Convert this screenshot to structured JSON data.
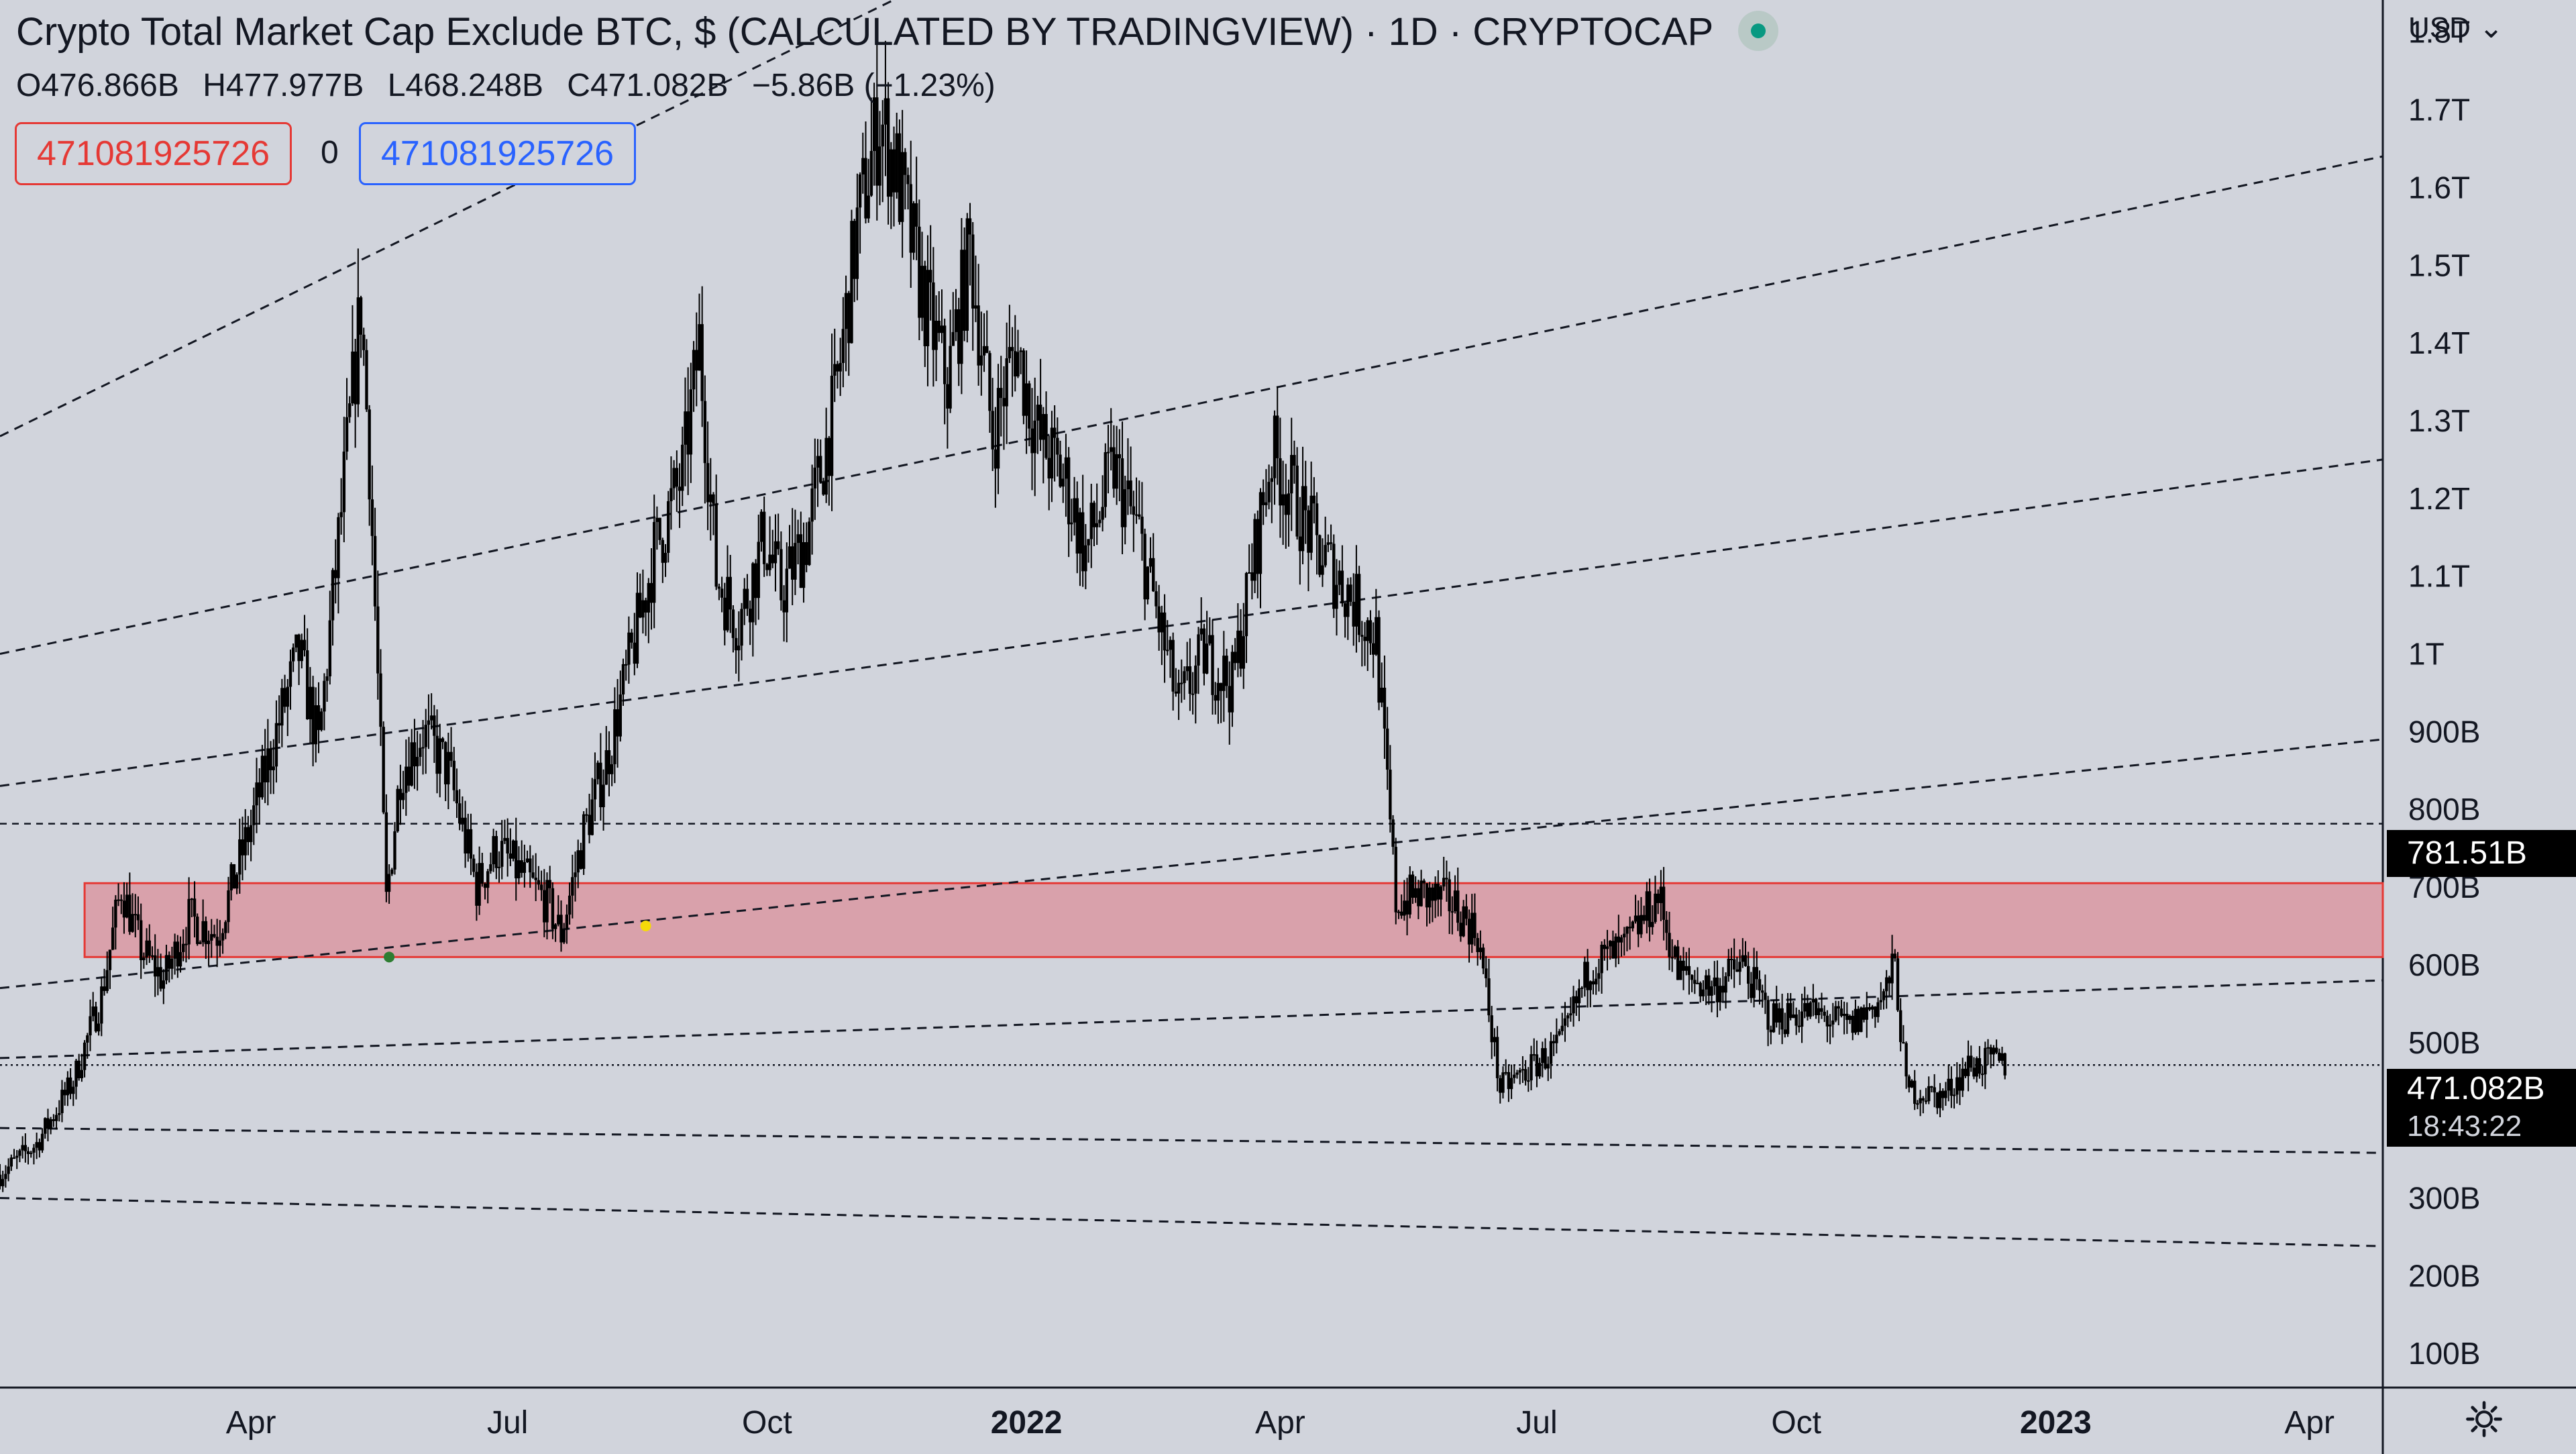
{
  "header": {
    "title": "Crypto Total Market Cap Exclude BTC, $ (CALCULATED BY TRADINGVIEW) · 1D · CRYPTOCAP",
    "open": "O476.866B",
    "high": "H477.977B",
    "low": "L468.248B",
    "close": "C471.082B",
    "change": "−5.86B (−1.23%)",
    "indicator_left": "471081925726",
    "indicator_mid": "0",
    "indicator_right": "471081925726",
    "status_icon": "live-status-dot",
    "currency": "USD"
  },
  "price_labels": {
    "level": "781.51B",
    "last": "471.082B",
    "countdown": "18:43:22"
  },
  "chart_data": {
    "type": "candlestick",
    "title": "Crypto Total Market Cap Exclude BTC, $ (CALCULATED BY TRADINGVIEW) · 1D · CRYPTOCAP",
    "x_range": [
      "2021-01-02",
      "2023-04-27"
    ],
    "y_unit": "USD",
    "y_ticks": [
      "100B",
      "200B",
      "300B",
      "400B",
      "500B",
      "600B",
      "700B",
      "800B",
      "900B",
      "1T",
      "1.1T",
      "1.2T",
      "1.3T",
      "1.4T",
      "1.5T",
      "1.6T",
      "1.7T",
      "1.8T"
    ],
    "y_tick_values": [
      100,
      200,
      300,
      400,
      500,
      600,
      700,
      800,
      900,
      1000,
      1100,
      1200,
      1300,
      1400,
      1500,
      1600,
      1700,
      1800
    ],
    "x_ticks": [
      {
        "label": "Apr",
        "date": "2021-04-01"
      },
      {
        "label": "Jul",
        "date": "2021-07-01"
      },
      {
        "label": "Oct",
        "date": "2021-10-01"
      },
      {
        "label": "2022",
        "date": "2022-01-01"
      },
      {
        "label": "Apr",
        "date": "2022-04-01"
      },
      {
        "label": "Jul",
        "date": "2022-07-01"
      },
      {
        "label": "Oct",
        "date": "2022-10-01"
      },
      {
        "label": "2023",
        "date": "2023-01-01"
      },
      {
        "label": "Apr",
        "date": "2023-04-01"
      }
    ],
    "series": [
      {
        "price_path": [
          {
            "date": "2021-01-02",
            "value": 330
          },
          {
            "date": "2021-01-15",
            "value": 370
          },
          {
            "date": "2021-01-28",
            "value": 450
          },
          {
            "date": "2021-02-07",
            "value": 560
          },
          {
            "date": "2021-02-14",
            "value": 700
          },
          {
            "date": "2021-02-21",
            "value": 620
          },
          {
            "date": "2021-03-01",
            "value": 580
          },
          {
            "date": "2021-03-10",
            "value": 660
          },
          {
            "date": "2021-03-20",
            "value": 640
          },
          {
            "date": "2021-04-01",
            "value": 780
          },
          {
            "date": "2021-04-10",
            "value": 900
          },
          {
            "date": "2021-04-18",
            "value": 1000
          },
          {
            "date": "2021-04-25",
            "value": 880
          },
          {
            "date": "2021-05-04",
            "value": 1220
          },
          {
            "date": "2021-05-10",
            "value": 1450
          },
          {
            "date": "2021-05-13",
            "value": 1250
          },
          {
            "date": "2021-05-19",
            "value": 680
          },
          {
            "date": "2021-05-24",
            "value": 850
          },
          {
            "date": "2021-06-01",
            "value": 900
          },
          {
            "date": "2021-06-10",
            "value": 850
          },
          {
            "date": "2021-06-20",
            "value": 700
          },
          {
            "date": "2021-06-27",
            "value": 750
          },
          {
            "date": "2021-07-05",
            "value": 720
          },
          {
            "date": "2021-07-15",
            "value": 680
          },
          {
            "date": "2021-07-20",
            "value": 640
          },
          {
            "date": "2021-07-28",
            "value": 770
          },
          {
            "date": "2021-08-05",
            "value": 860
          },
          {
            "date": "2021-08-14",
            "value": 1000
          },
          {
            "date": "2021-08-22",
            "value": 1130
          },
          {
            "date": "2021-09-01",
            "value": 1230
          },
          {
            "date": "2021-09-07",
            "value": 1400
          },
          {
            "date": "2021-09-13",
            "value": 1100
          },
          {
            "date": "2021-09-21",
            "value": 1040
          },
          {
            "date": "2021-09-30",
            "value": 1150
          },
          {
            "date": "2021-10-06",
            "value": 1080
          },
          {
            "date": "2021-10-15",
            "value": 1150
          },
          {
            "date": "2021-10-25",
            "value": 1320
          },
          {
            "date": "2021-11-02",
            "value": 1550
          },
          {
            "date": "2021-11-10",
            "value": 1690
          },
          {
            "date": "2021-11-16",
            "value": 1620
          },
          {
            "date": "2021-11-26",
            "value": 1450
          },
          {
            "date": "2021-12-04",
            "value": 1350
          },
          {
            "date": "2021-12-12",
            "value": 1520
          },
          {
            "date": "2021-12-20",
            "value": 1280
          },
          {
            "date": "2021-12-28",
            "value": 1400
          },
          {
            "date": "2022-01-05",
            "value": 1280
          },
          {
            "date": "2022-01-15",
            "value": 1220
          },
          {
            "date": "2022-01-22",
            "value": 1130
          },
          {
            "date": "2022-02-01",
            "value": 1240
          },
          {
            "date": "2022-02-10",
            "value": 1150
          },
          {
            "date": "2022-02-24",
            "value": 930
          },
          {
            "date": "2022-03-05",
            "value": 1000
          },
          {
            "date": "2022-03-15",
            "value": 960
          },
          {
            "date": "2022-03-29",
            "value": 1260
          },
          {
            "date": "2022-04-06",
            "value": 1200
          },
          {
            "date": "2022-04-15",
            "value": 1130
          },
          {
            "date": "2022-04-25",
            "value": 1080
          },
          {
            "date": "2022-05-05",
            "value": 1020
          },
          {
            "date": "2022-05-12",
            "value": 680
          },
          {
            "date": "2022-05-20",
            "value": 690
          },
          {
            "date": "2022-06-01",
            "value": 680
          },
          {
            "date": "2022-06-10",
            "value": 640
          },
          {
            "date": "2022-06-18",
            "value": 440
          },
          {
            "date": "2022-06-30",
            "value": 470
          },
          {
            "date": "2022-07-10",
            "value": 500
          },
          {
            "date": "2022-07-20",
            "value": 600
          },
          {
            "date": "2022-08-01",
            "value": 620
          },
          {
            "date": "2022-08-13",
            "value": 690
          },
          {
            "date": "2022-08-20",
            "value": 590
          },
          {
            "date": "2022-09-01",
            "value": 570
          },
          {
            "date": "2022-09-12",
            "value": 600
          },
          {
            "date": "2022-09-22",
            "value": 530
          },
          {
            "date": "2022-10-05",
            "value": 540
          },
          {
            "date": "2022-10-20",
            "value": 520
          },
          {
            "date": "2022-11-01",
            "value": 560
          },
          {
            "date": "2022-11-05",
            "value": 600
          },
          {
            "date": "2022-11-09",
            "value": 440
          },
          {
            "date": "2022-11-22",
            "value": 430
          },
          {
            "date": "2022-12-01",
            "value": 470
          },
          {
            "date": "2022-12-10",
            "value": 475
          },
          {
            "date": "2022-12-14",
            "value": 471.082
          }
        ]
      }
    ],
    "last_price": 471.082,
    "horizontal_line": 781.51,
    "zone": {
      "from": 610,
      "to": 705
    },
    "trend_lines": [
      {
        "from": {
          "date": "2021-01-02",
          "value": 1280
        },
        "to": {
          "date": "2022-01-21",
          "value": 1960
        }
      },
      {
        "from": {
          "date": "2021-01-02",
          "value": 1000
        },
        "to": {
          "date": "2023-04-27",
          "value": 1640
        }
      },
      {
        "from": {
          "date": "2021-01-02",
          "value": 830
        },
        "to": {
          "date": "2023-04-27",
          "value": 1250
        }
      },
      {
        "from": {
          "date": "2021-01-02",
          "value": 570
        },
        "to": {
          "date": "2023-04-27",
          "value": 890
        }
      },
      {
        "from": {
          "date": "2021-01-02",
          "value": 480
        },
        "to": {
          "date": "2023-04-27",
          "value": 580
        }
      },
      {
        "from": {
          "date": "2021-01-02",
          "value": 390
        },
        "to": {
          "date": "2023-04-27",
          "value": 358
        }
      },
      {
        "from": {
          "date": "2021-01-02",
          "value": 300
        },
        "to": {
          "date": "2023-04-27",
          "value": 238
        }
      }
    ],
    "markers": [
      {
        "date": "2021-05-20",
        "value": 610,
        "color": "#2e7d32"
      },
      {
        "date": "2021-08-19",
        "value": 650,
        "color": "#f5d90a"
      }
    ],
    "colors": {
      "background": "#d1d4dc",
      "candles": "#000000",
      "zone": "#d9a1ab",
      "zone_border": "#e53935",
      "legend_red": "#e53935",
      "legend_blue": "#2962ff",
      "status": "#089981"
    }
  }
}
